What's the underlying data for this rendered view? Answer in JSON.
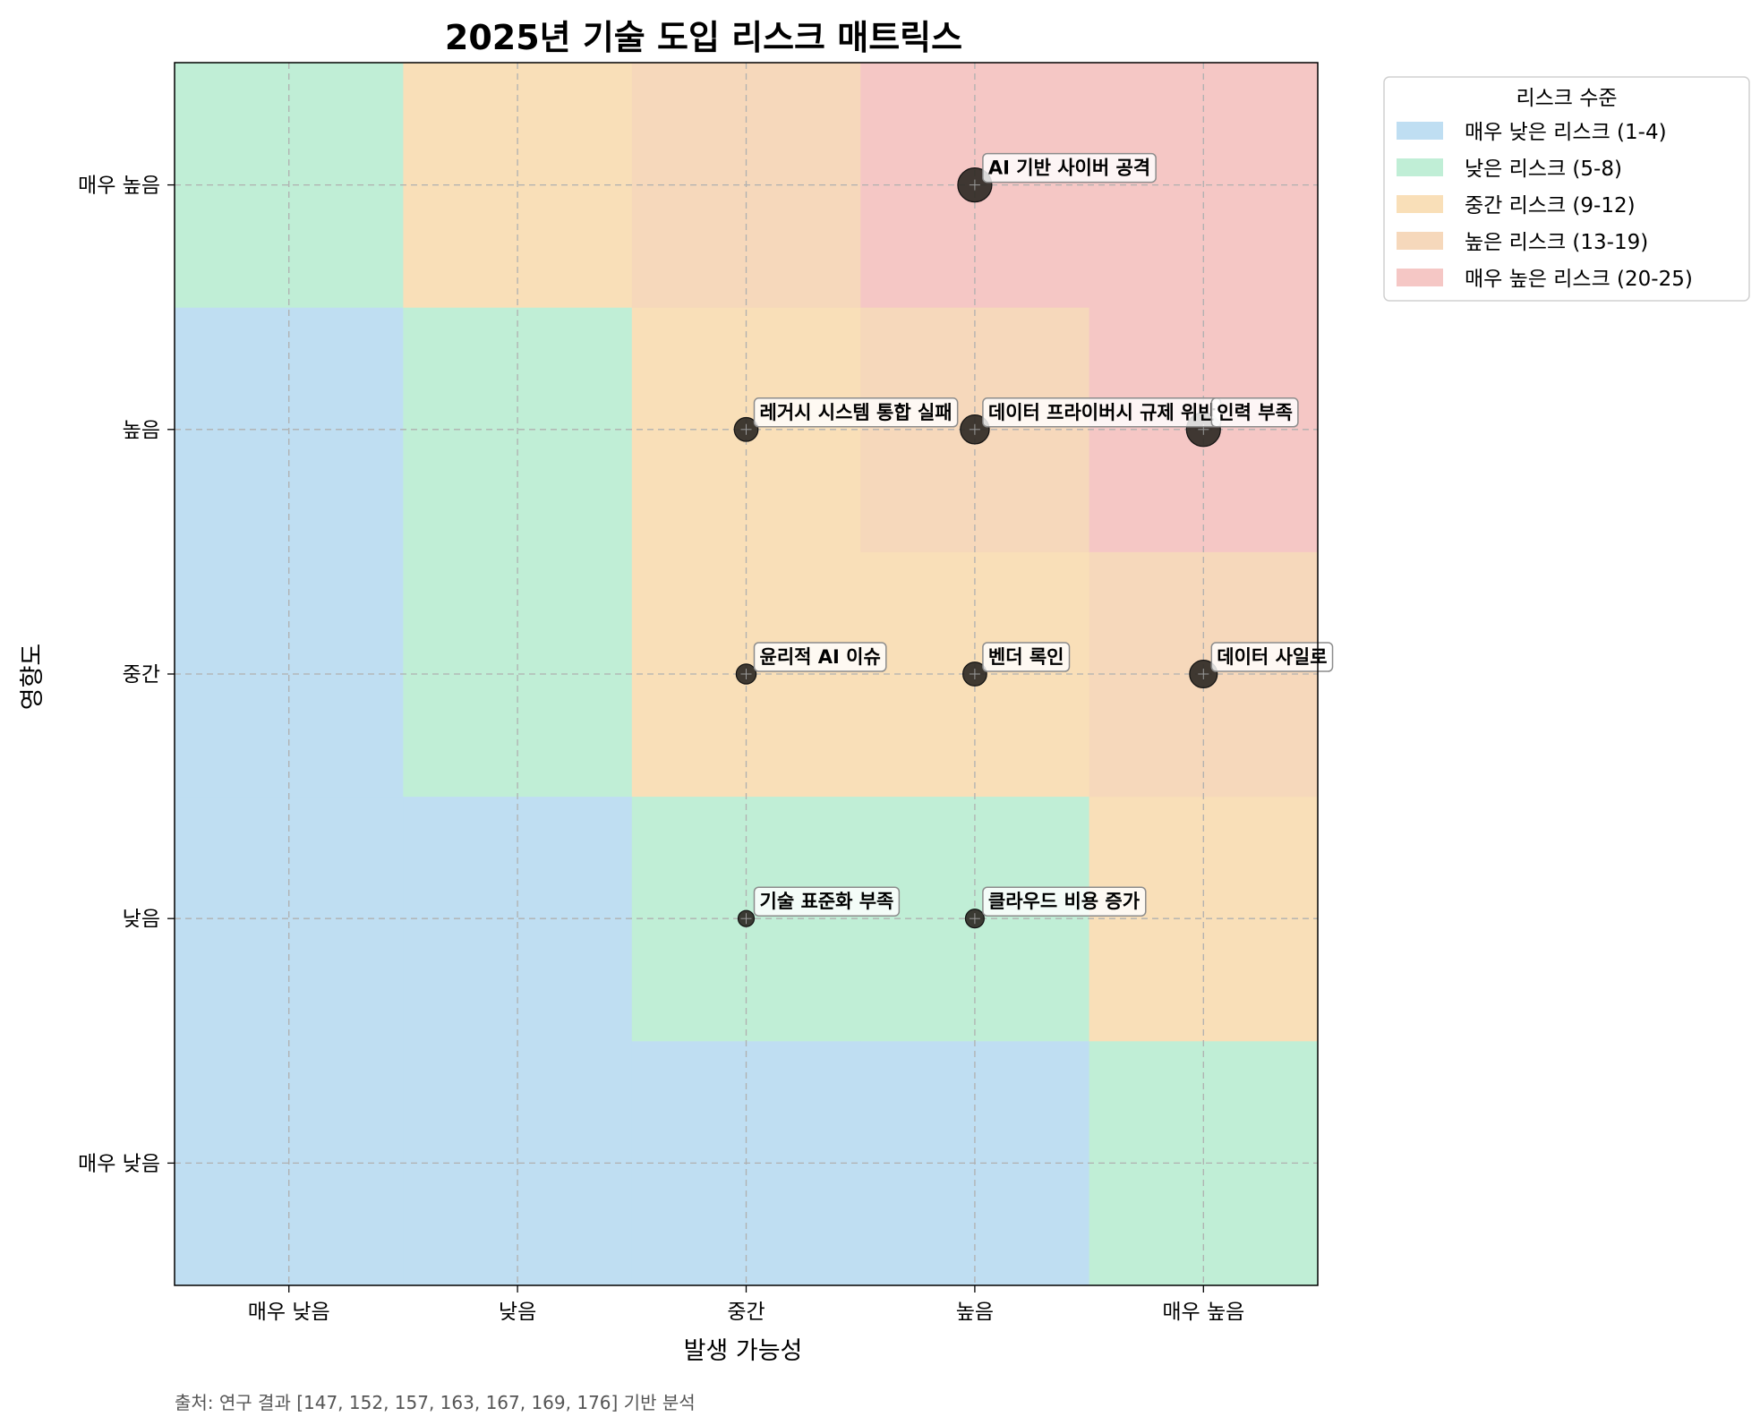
{
  "chart_data": {
    "type": "scatter",
    "title": "2025년 기술 도입 리스크 매트릭스",
    "xlabel": "발생 가능성",
    "ylabel": "영향도",
    "x_categories": [
      "매우 낮음",
      "낮음",
      "중간",
      "높음",
      "매우 높음"
    ],
    "y_categories": [
      "매우 낮음",
      "낮음",
      "중간",
      "높음",
      "매우 높음"
    ],
    "xlim": [
      0.5,
      5.5
    ],
    "ylim": [
      0.5,
      5.5
    ],
    "grid": true,
    "points": [
      {
        "label": "AI 기반 사이버 공격",
        "x": 4,
        "y": 5,
        "score": 20
      },
      {
        "label": "레거시 시스템 통합 실패",
        "x": 3,
        "y": 4,
        "score": 12
      },
      {
        "label": "데이터 프라이버시 규제 위반",
        "x": 4,
        "y": 4,
        "score": 16
      },
      {
        "label": "인력 부족",
        "x": 5,
        "y": 4,
        "score": 20
      },
      {
        "label": "윤리적 AI 이슈",
        "x": 3,
        "y": 3,
        "score": 9
      },
      {
        "label": "벤더 록인",
        "x": 4,
        "y": 3,
        "score": 12
      },
      {
        "label": "데이터 사일로",
        "x": 5,
        "y": 3,
        "score": 15
      },
      {
        "label": "기술 표준화 부족",
        "x": 3,
        "y": 2,
        "score": 6
      },
      {
        "label": "클라우드 비용 증가",
        "x": 4,
        "y": 2,
        "score": 8
      }
    ],
    "legend": {
      "title": "리스크 수준",
      "position": "outside-top-right",
      "entries": [
        {
          "label": "매우 낮은 리스크 (1-4)",
          "min": 1,
          "max": 4,
          "color": "#bfdef2"
        },
        {
          "label": "낮은 리스크 (5-8)",
          "min": 5,
          "max": 8,
          "color": "#c0eed6"
        },
        {
          "label": "중간 리스크 (9-12)",
          "min": 9,
          "max": 12,
          "color": "#f9dfb8"
        },
        {
          "label": "높은 리스크 (13-19)",
          "min": 13,
          "max": 19,
          "color": "#f6d8bb"
        },
        {
          "label": "매우 높은 리스크 (20-25)",
          "min": 20,
          "max": 25,
          "color": "#f5c7c5"
        }
      ]
    },
    "marker_color": "#2f2a25",
    "source_note": "출처: 연구 결과 [147, 152, 157, 163, 167, 169, 176] 기반 분석"
  }
}
